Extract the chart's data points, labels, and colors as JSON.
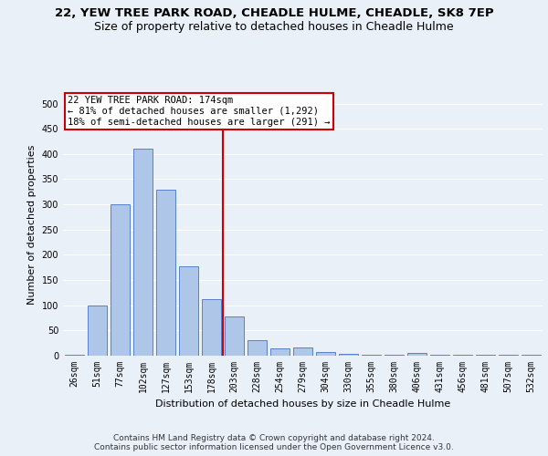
{
  "title_line1": "22, YEW TREE PARK ROAD, CHEADLE HULME, CHEADLE, SK8 7EP",
  "title_line2": "Size of property relative to detached houses in Cheadle Hulme",
  "xlabel": "Distribution of detached houses by size in Cheadle Hulme",
  "ylabel": "Number of detached properties",
  "bin_labels": [
    "26sqm",
    "51sqm",
    "77sqm",
    "102sqm",
    "127sqm",
    "153sqm",
    "178sqm",
    "203sqm",
    "228sqm",
    "254sqm",
    "279sqm",
    "304sqm",
    "330sqm",
    "355sqm",
    "380sqm",
    "406sqm",
    "431sqm",
    "456sqm",
    "481sqm",
    "507sqm",
    "532sqm"
  ],
  "bar_values": [
    1,
    100,
    301,
    411,
    330,
    178,
    112,
    77,
    30,
    15,
    16,
    7,
    3,
    1,
    1,
    5,
    1,
    1,
    1,
    1,
    1
  ],
  "bar_color": "#aec6e8",
  "bar_edge_color": "#4472c4",
  "property_line_label": "22 YEW TREE PARK ROAD: 174sqm",
  "annotation_line1": "← 81% of detached houses are smaller (1,292)",
  "annotation_line2": "18% of semi-detached houses are larger (291) →",
  "vline_color": "#cc0000",
  "annotation_box_edge": "#cc0000",
  "ylim": [
    0,
    520
  ],
  "yticks": [
    0,
    50,
    100,
    150,
    200,
    250,
    300,
    350,
    400,
    450,
    500
  ],
  "footer_line1": "Contains HM Land Registry data © Crown copyright and database right 2024.",
  "footer_line2": "Contains public sector information licensed under the Open Government Licence v3.0.",
  "bg_color": "#eaf0f8",
  "plot_bg_color": "#eaf0f8",
  "grid_color": "#ffffff",
  "title_fontsize": 9.5,
  "subtitle_fontsize": 9,
  "axis_label_fontsize": 8,
  "tick_fontsize": 7,
  "footer_fontsize": 6.5,
  "annotation_fontsize": 7.5
}
